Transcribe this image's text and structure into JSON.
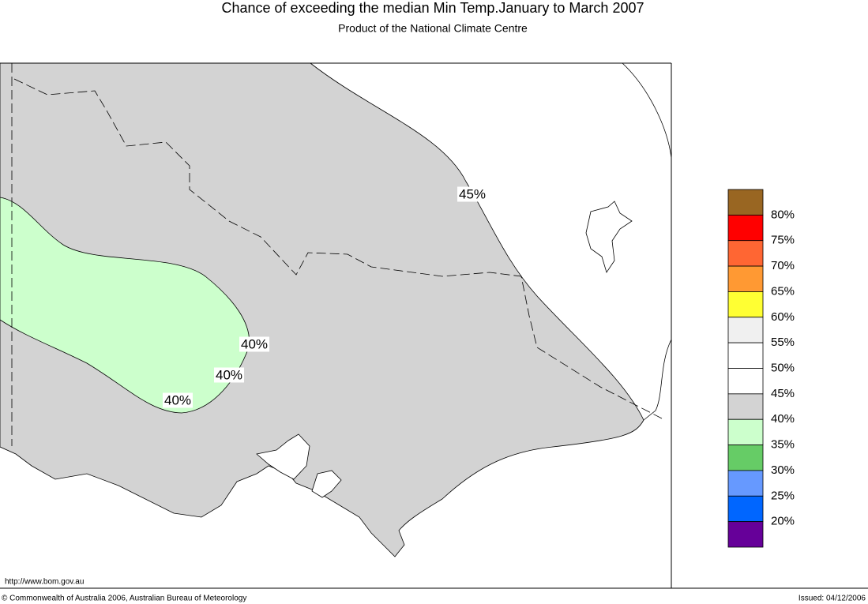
{
  "header": {
    "title": "Chance of exceeding the median Min Temp.January to March 2007",
    "subtitle": "Product of the National Climate Centre"
  },
  "contour_labels": [
    "45%",
    "40%",
    "40%",
    "40%"
  ],
  "legend": {
    "colors": [
      "#996622",
      "#ff0000",
      "#ff6633",
      "#ff9933",
      "#ffff33",
      "#f0f0f0",
      "#ffffff",
      "#ffffff",
      "#d3d3d3",
      "#ccffcc",
      "#66cc66",
      "#6699ff",
      "#0066ff",
      "#660099"
    ],
    "labels": [
      "80%",
      "75%",
      "70%",
      "65%",
      "60%",
      "55%",
      "50%",
      "45%",
      "40%",
      "35%",
      "30%",
      "25%",
      "20%"
    ]
  },
  "footer": {
    "url": "http://www.bom.gov.au",
    "copyright": "© Commonwealth of Australia 2006, Australian Bureau of Meteorology",
    "issued": "Issued: 04/12/2006"
  }
}
